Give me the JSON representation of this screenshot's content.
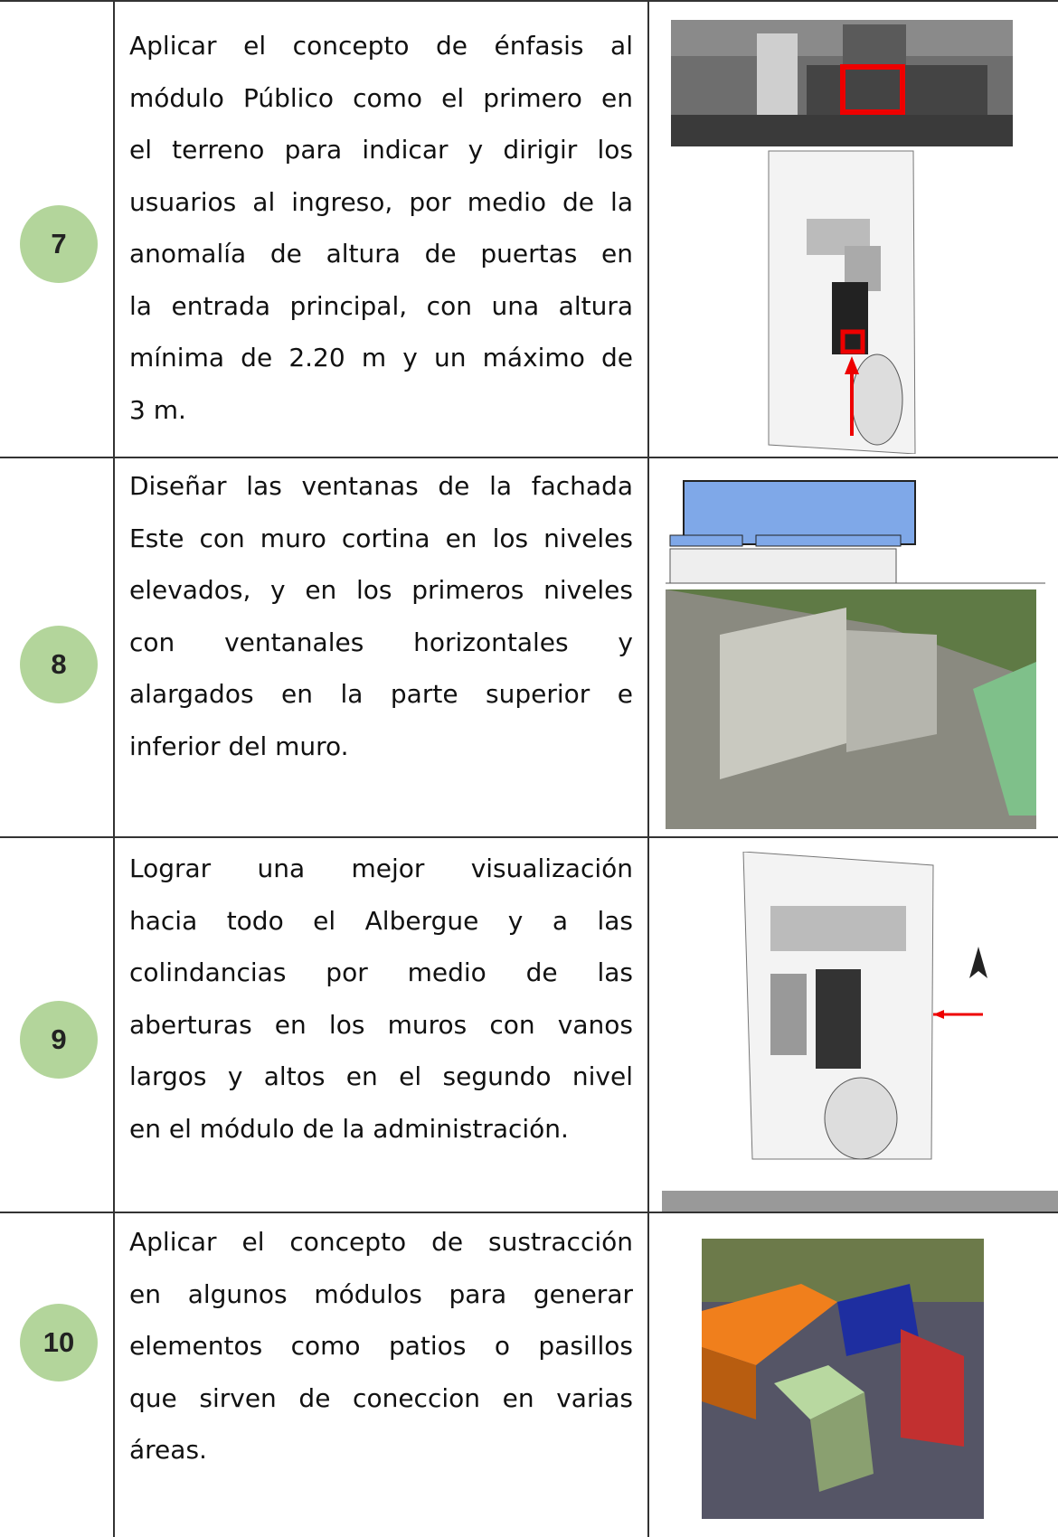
{
  "table": {
    "rows": [
      {
        "number": "7",
        "lines": [
          "Aplicar el concepto de énfasis  al",
          "módulo Público como el primero en",
          "el terreno para indicar y dirigir los",
          "usuarios al ingreso, por medio de la",
          "anomalía de altura de  puertas en",
          "la entrada principal, con una altura",
          "mínima de 2.20 m y un máximo de",
          "3 m."
        ]
      },
      {
        "number": "8",
        "lines": [
          "Diseñar las ventanas de la fachada",
          "Este con muro cortina en los niveles",
          "elevados, y en los primeros niveles",
          "con ventanales horizontales y",
          "alargados en la parte superior e",
          "inferior del muro."
        ]
      },
      {
        "number": "9",
        "lines": [
          "Lograr una mejor visualización",
          "hacia todo el Albergue y a las",
          "colindancias por medio de las",
          "aberturas en los muros con vanos",
          "largos y altos en el segundo nivel",
          "en el módulo de la administración."
        ]
      },
      {
        "number": "10",
        "lines": [
          "Aplicar el concepto de sustracción",
          "en algunos módulos para generar",
          "elementos como patios o pasillos",
          "que sirven de coneccion en varias",
          "áreas."
        ]
      }
    ]
  }
}
